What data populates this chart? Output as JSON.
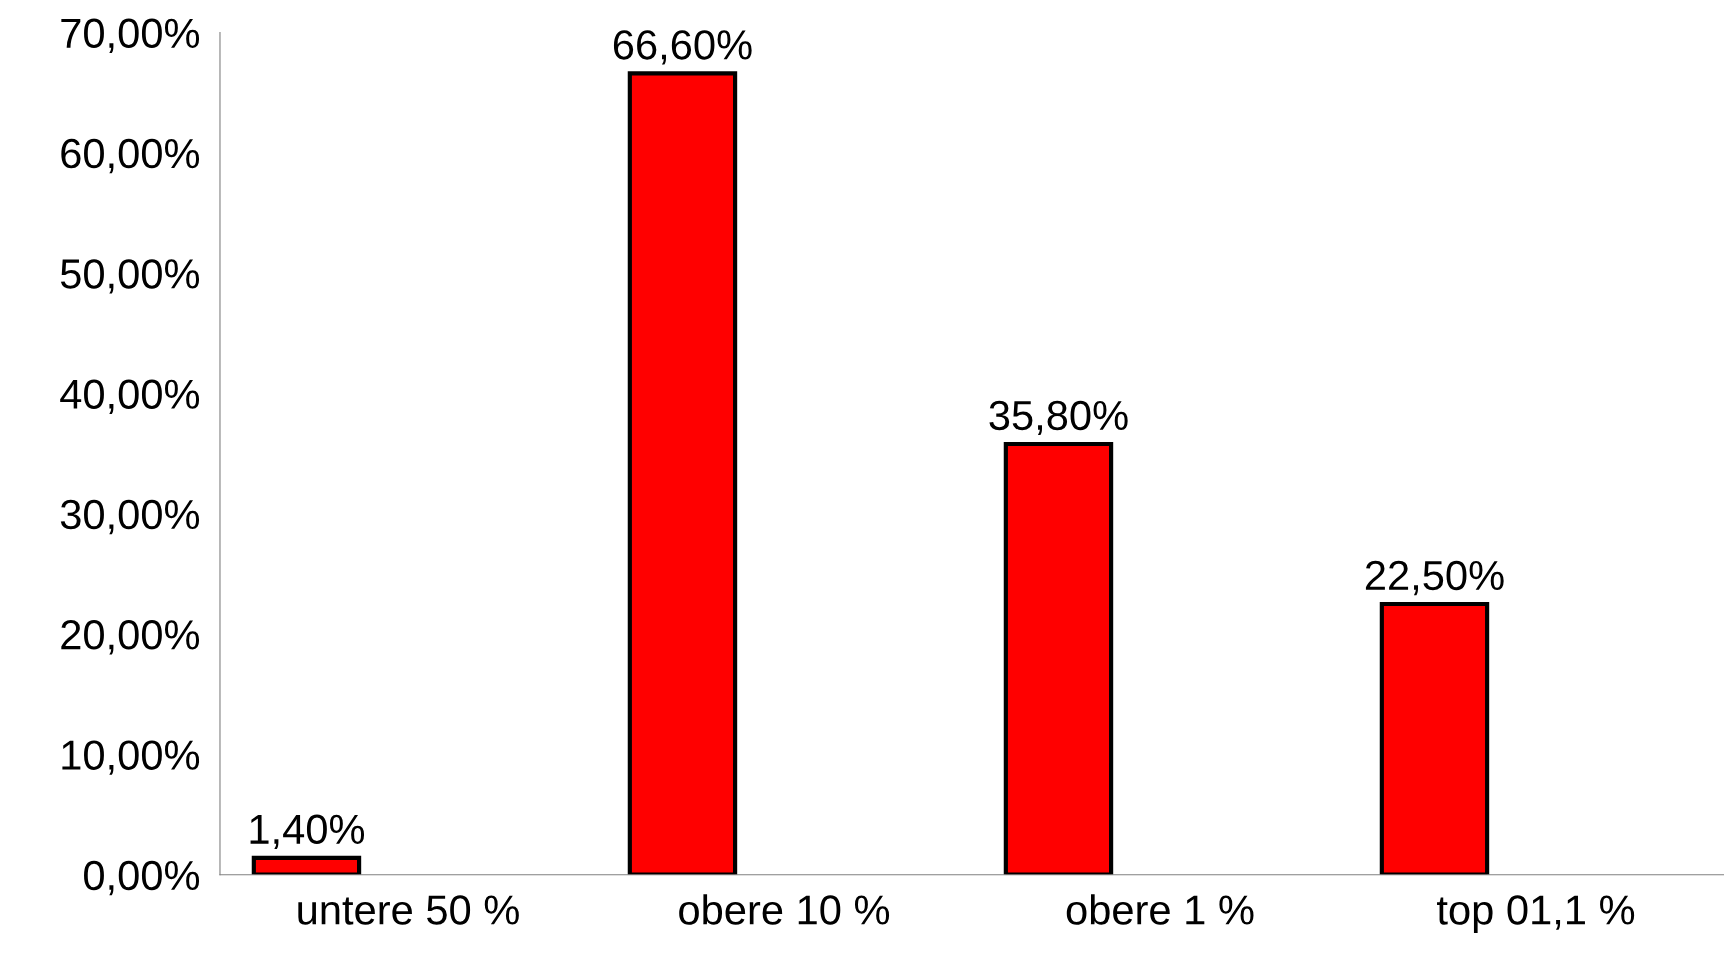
{
  "chart_data": {
    "type": "bar",
    "categories": [
      "untere 50 %",
      "obere 10 %",
      "obere 1 %",
      "top 01,1 %"
    ],
    "values": [
      1.4,
      66.6,
      35.8,
      22.5
    ],
    "color": "#ff0000",
    "value_labels": [
      "1,40%",
      "66,60%",
      "35,80%",
      "22,50%"
    ],
    "ylim": [
      0,
      70
    ],
    "yticks": [
      {
        "value": 0,
        "label": "0,00%"
      },
      {
        "value": 10,
        "label": "10,00%"
      },
      {
        "value": 20,
        "label": "20,00%"
      },
      {
        "value": 30,
        "label": "30,00%"
      },
      {
        "value": 40,
        "label": "40,00%"
      },
      {
        "value": 50,
        "label": "50,00%"
      },
      {
        "value": 60,
        "label": "60,00%"
      },
      {
        "value": 70,
        "label": "70,00%"
      }
    ],
    "grid": false,
    "legend": false
  }
}
